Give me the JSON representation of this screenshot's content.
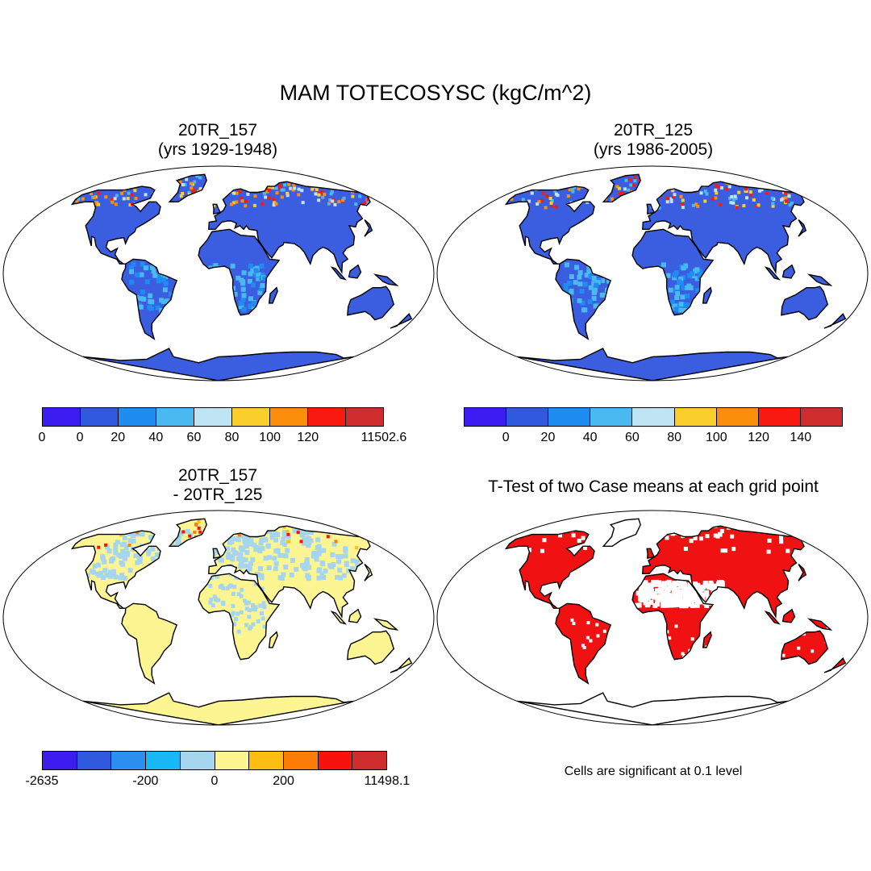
{
  "figure": {
    "title": "MAM TOTECOSYSC (kgC/m^2)"
  },
  "panels": [
    {
      "id": "tl",
      "title_line1": "20TR_157",
      "title_line2": "(yrs 1929-1948)",
      "kind": "field",
      "colorbar": {
        "colors": [
          "#3c1cf0",
          "#2f5ae0",
          "#1e8cf0",
          "#49b9ef",
          "#bfe4f4",
          "#fbcf2b",
          "#fb8e0a",
          "#f81a10",
          "#cf2d2d"
        ],
        "labels": [
          "0",
          "0",
          "20",
          "40",
          "60",
          "80",
          "100",
          "120",
          "11502.6"
        ]
      }
    },
    {
      "id": "tr",
      "title_line1": "20TR_125",
      "title_line2": "(yrs 1986-2005)",
      "kind": "field",
      "colorbar": {
        "colors": [
          "#3c1cf0",
          "#2f5ae0",
          "#1e8cf0",
          "#49b9ef",
          "#bfe4f4",
          "#fbcf2b",
          "#fb8e0a",
          "#f81a10",
          "#cf2d2d"
        ],
        "labels": [
          "0",
          "20",
          "40",
          "60",
          "80",
          "100",
          "120",
          "140"
        ]
      }
    },
    {
      "id": "bl",
      "title_line1": "20TR_157",
      "title_line2": "- 20TR_125",
      "kind": "difference",
      "colorbar": {
        "colors": [
          "#3c1cf0",
          "#2f5ae0",
          "#2b8ff2",
          "#17b8f5",
          "#a6d6ef",
          "#fdf591",
          "#fdbd12",
          "#fb7d06",
          "#f8120e",
          "#cf2d2d"
        ],
        "labels": [
          "-2635",
          "-200",
          "0",
          "200",
          "11498.1"
        ]
      }
    },
    {
      "id": "br",
      "title_line1": "T-Test of two Case means at each grid point",
      "kind": "significance",
      "note": "Cells are significant at 0.1 level"
    }
  ],
  "colors": {
    "land_field": "#3b5ee0",
    "land_field_light": "#3a9ff0",
    "land_diff": "#fdf591",
    "land_diff_blue": "#a6d6ef",
    "significant": "#f01212"
  }
}
